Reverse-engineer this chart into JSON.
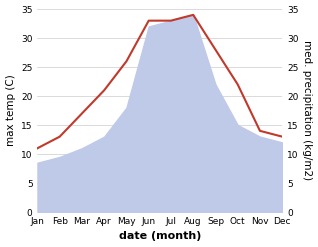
{
  "months": [
    "Jan",
    "Feb",
    "Mar",
    "Apr",
    "May",
    "Jun",
    "Jul",
    "Aug",
    "Sep",
    "Oct",
    "Nov",
    "Dec"
  ],
  "temp": [
    11,
    13,
    17,
    21,
    26,
    33,
    33,
    34,
    28,
    22,
    14,
    13
  ],
  "precip": [
    8.5,
    9.5,
    11,
    13,
    18,
    32,
    33,
    34,
    22,
    15,
    13,
    12
  ],
  "temp_color": "#c0392b",
  "precip_fill_color": "#bfc9e8",
  "ylim": [
    0,
    35
  ],
  "yticks": [
    0,
    5,
    10,
    15,
    20,
    25,
    30,
    35
  ],
  "ylabel_left": "max temp (C)",
  "ylabel_right": "med. precipitation (kg/m2)",
  "xlabel": "date (month)",
  "background_color": "#ffffff",
  "tick_fontsize": 6.5,
  "label_fontsize": 7.5,
  "xlabel_fontsize": 8
}
